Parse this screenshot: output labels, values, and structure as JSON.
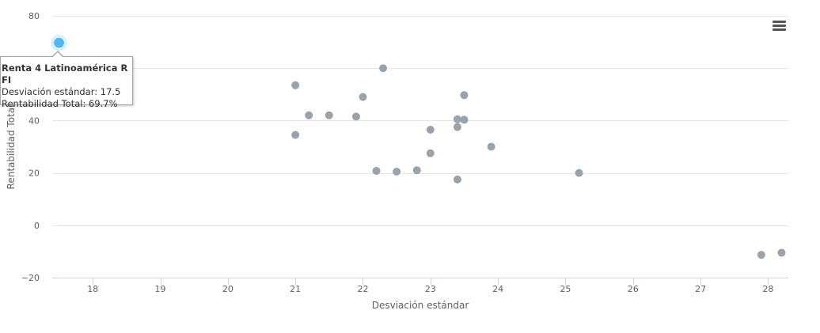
{
  "chart_data": {
    "type": "scatter",
    "title": "",
    "xlabel": "Desviación estándar",
    "ylabel": "Rentabilidad Total",
    "xlim": [
      17.4,
      28.3
    ],
    "ylim": [
      -20,
      80
    ],
    "x_ticks": [
      "18",
      "19",
      "20",
      "21",
      "22",
      "23",
      "24",
      "25",
      "26",
      "27",
      "28"
    ],
    "y_ticks": [
      "−20",
      "0",
      "20",
      "40",
      "80"
    ],
    "grid": "horizontal",
    "series": [
      {
        "point_color": "#9aa3ac",
        "points": [
          {
            "x": 21.0,
            "y": 53.5
          },
          {
            "x": 21.0,
            "y": 34.5
          },
          {
            "x": 21.2,
            "y": 42.0
          },
          {
            "x": 21.5,
            "y": 42.0
          },
          {
            "x": 21.9,
            "y": 41.5
          },
          {
            "x": 22.0,
            "y": 49.0
          },
          {
            "x": 22.3,
            "y": 60.0
          },
          {
            "x": 22.2,
            "y": 20.8
          },
          {
            "x": 22.5,
            "y": 20.5
          },
          {
            "x": 22.8,
            "y": 21.0
          },
          {
            "x": 23.0,
            "y": 36.5
          },
          {
            "x": 23.0,
            "y": 27.5
          },
          {
            "x": 23.4,
            "y": 40.5
          },
          {
            "x": 23.5,
            "y": 40.3
          },
          {
            "x": 23.4,
            "y": 37.5
          },
          {
            "x": 23.5,
            "y": 49.7
          },
          {
            "x": 23.4,
            "y": 17.5
          },
          {
            "x": 23.9,
            "y": 30.0
          },
          {
            "x": 25.2,
            "y": 20.0
          },
          {
            "x": 27.9,
            "y": -11.3
          },
          {
            "x": 28.2,
            "y": -10.5
          }
        ]
      }
    ],
    "highlighted_point": {
      "name": "Renta 4 Latinoamérica R FI",
      "x": 17.5,
      "y": 69.7,
      "color": "#4fb8ef"
    }
  },
  "tooltip": {
    "title": "Renta 4 Latinoamérica R FI",
    "line1": "Desviación estándar: 17.5",
    "line2": "Rentabilidad Total: 69.7%"
  },
  "icons": {
    "menu": "hamburger-menu-icon"
  }
}
